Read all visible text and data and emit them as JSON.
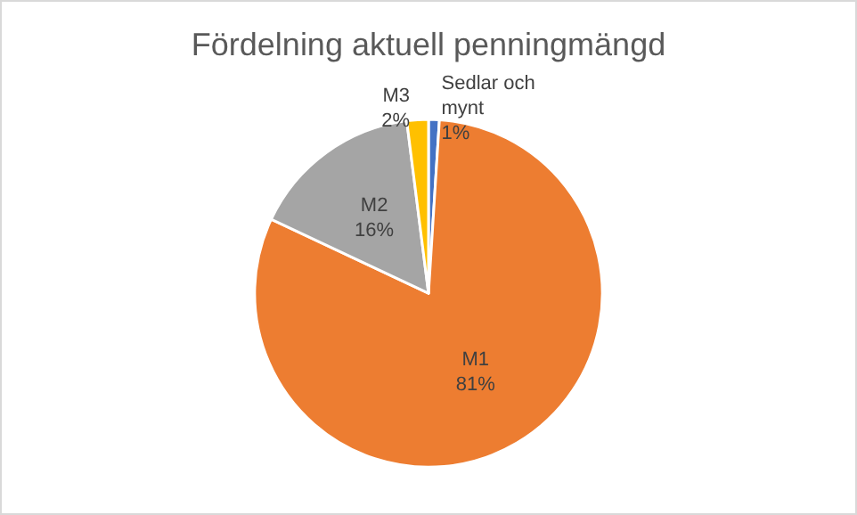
{
  "chart_data": {
    "type": "pie",
    "title": "Fördelning aktuell penningmängd",
    "categories": [
      "Sedlar och mynt",
      "M1",
      "M2",
      "M3"
    ],
    "values": [
      1,
      81,
      16,
      2
    ],
    "value_labels": [
      "1%",
      "81%",
      "16%",
      "2%"
    ],
    "colors": [
      "#4472c4",
      "#ed7d31",
      "#a5a5a5",
      "#ffc000"
    ],
    "legend": false
  }
}
